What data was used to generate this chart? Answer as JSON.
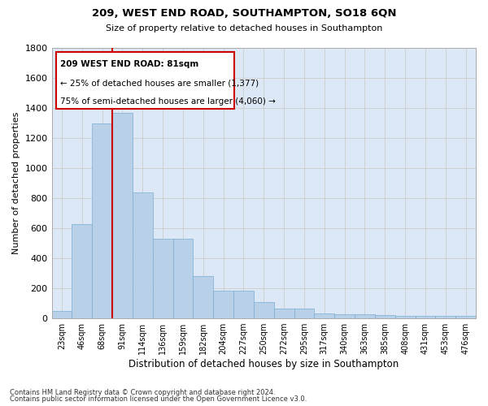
{
  "title1": "209, WEST END ROAD, SOUTHAMPTON, SO18 6QN",
  "title2": "Size of property relative to detached houses in Southampton",
  "xlabel": "Distribution of detached houses by size in Southampton",
  "ylabel": "Number of detached properties",
  "categories": [
    "23sqm",
    "46sqm",
    "68sqm",
    "91sqm",
    "114sqm",
    "136sqm",
    "159sqm",
    "182sqm",
    "204sqm",
    "227sqm",
    "250sqm",
    "272sqm",
    "295sqm",
    "317sqm",
    "340sqm",
    "363sqm",
    "385sqm",
    "408sqm",
    "431sqm",
    "453sqm",
    "476sqm"
  ],
  "values": [
    50,
    630,
    1300,
    1370,
    840,
    530,
    530,
    280,
    185,
    185,
    110,
    65,
    65,
    35,
    30,
    30,
    20,
    15,
    15,
    15,
    15
  ],
  "bar_color": "#b8d0e8",
  "bar_edge_color": "#7aaed4",
  "grid_color": "#cccccc",
  "background_color": "#dce8f5",
  "vline_x": 2.5,
  "vline_color": "#cc0000",
  "annotation_line1": "209 WEST END ROAD: 81sqm",
  "annotation_line2": "← 25% of detached houses are smaller (1,377)",
  "annotation_line3": "75% of semi-detached houses are larger (4,060) →",
  "annotation_box_color": "#ffffff",
  "annotation_box_edge": "#cc0000",
  "ylim": [
    0,
    1800
  ],
  "yticks": [
    0,
    200,
    400,
    600,
    800,
    1000,
    1200,
    1400,
    1600,
    1800
  ],
  "footer1": "Contains HM Land Registry data © Crown copyright and database right 2024.",
  "footer2": "Contains public sector information licensed under the Open Government Licence v3.0."
}
